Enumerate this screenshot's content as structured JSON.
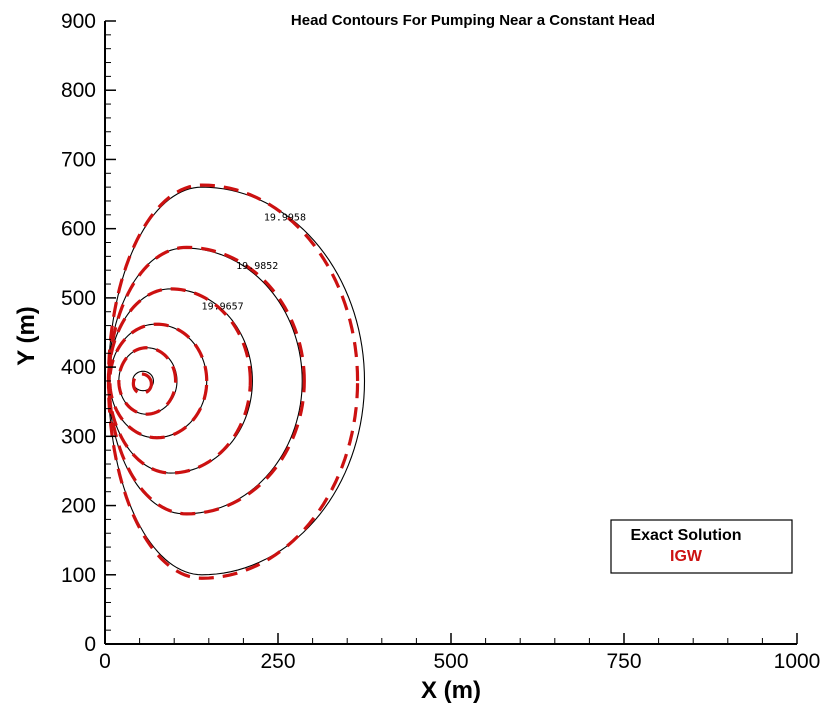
{
  "chart_data": {
    "type": "line",
    "title": "Head Contours For Pumping Near a Constant Head",
    "xlabel": "X (m)",
    "ylabel": "Y (m)",
    "xlim": [
      0,
      1000
    ],
    "ylim": [
      0,
      900
    ],
    "xticks": [
      0,
      250,
      500,
      750,
      1000
    ],
    "yticks": [
      0,
      100,
      200,
      300,
      400,
      500,
      600,
      700,
      800,
      900
    ],
    "legend": {
      "position": "bottom-right",
      "entries": [
        "Exact Solution",
        "IGW"
      ]
    },
    "colors": {
      "exact": "#000000",
      "igw": "#cc1111"
    },
    "contour_labels": [
      {
        "text": "19.9958",
        "x": 260,
        "y": 612
      },
      {
        "text": "19.9852",
        "x": 220,
        "y": 542
      },
      {
        "text": "19.9657",
        "x": 170,
        "y": 483
      }
    ],
    "series": [
      {
        "name": "Exact Solution",
        "style": "solid",
        "contours": [
          {
            "cx": 140,
            "cy": 380,
            "rx_left": 135,
            "rx_right": 235,
            "ry_top": 280,
            "ry_bottom": 280
          },
          {
            "cx": 115,
            "cy": 380,
            "rx_left": 110,
            "rx_right": 170,
            "ry_top": 192,
            "ry_bottom": 192
          },
          {
            "cx": 95,
            "cy": 380,
            "rx_left": 90,
            "rx_right": 118,
            "ry_top": 133,
            "ry_bottom": 133
          },
          {
            "cx": 73,
            "cy": 380,
            "rx_left": 66,
            "rx_right": 74,
            "ry_top": 82,
            "ry_bottom": 82
          },
          {
            "cx": 60,
            "cy": 380,
            "rx_left": 40,
            "rx_right": 44,
            "ry_top": 48,
            "ry_bottom": 48
          },
          {
            "cx": 55,
            "cy": 380,
            "rx_left": 15,
            "rx_right": 15,
            "ry_top": 14,
            "ry_bottom": 14
          }
        ]
      },
      {
        "name": "IGW",
        "style": "dashed",
        "contours": [
          {
            "cx": 140,
            "cy": 380,
            "rx_left": 135,
            "rx_right": 225,
            "ry_top": 283,
            "ry_bottom": 285
          },
          {
            "cx": 118,
            "cy": 380,
            "rx_left": 112,
            "rx_right": 170,
            "ry_top": 193,
            "ry_bottom": 192
          },
          {
            "cx": 95,
            "cy": 380,
            "rx_left": 90,
            "rx_right": 115,
            "ry_top": 133,
            "ry_bottom": 133
          },
          {
            "cx": 75,
            "cy": 380,
            "rx_left": 68,
            "rx_right": 72,
            "ry_top": 82,
            "ry_bottom": 82
          },
          {
            "cx": 60,
            "cy": 380,
            "rx_left": 40,
            "rx_right": 42,
            "ry_top": 48,
            "ry_bottom": 48
          },
          {
            "cx": 53,
            "cy": 376,
            "rx_left": 12,
            "rx_right": 14,
            "ry_top": 14,
            "ry_bottom": 14
          }
        ]
      }
    ]
  }
}
